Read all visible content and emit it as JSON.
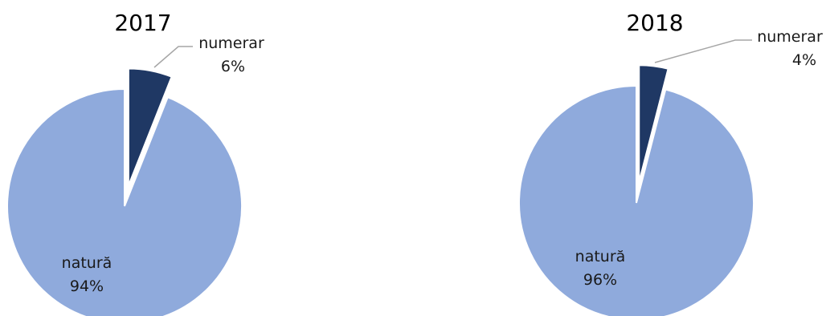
{
  "chart_data": [
    {
      "type": "pie",
      "title": "2017",
      "slices": [
        {
          "label": "numerar",
          "value": 6,
          "display": "6%",
          "color": "#1f3864",
          "exploded": true
        },
        {
          "label": "natură",
          "value": 94,
          "display": "94%",
          "color": "#8faadc",
          "exploded": false
        }
      ]
    },
    {
      "type": "pie",
      "title": "2018",
      "slices": [
        {
          "label": "numerar",
          "value": 4,
          "display": "4%",
          "color": "#1f3864",
          "exploded": true
        },
        {
          "label": "natură",
          "value": 96,
          "display": "96%",
          "color": "#8faadc",
          "exploded": false
        }
      ]
    }
  ]
}
